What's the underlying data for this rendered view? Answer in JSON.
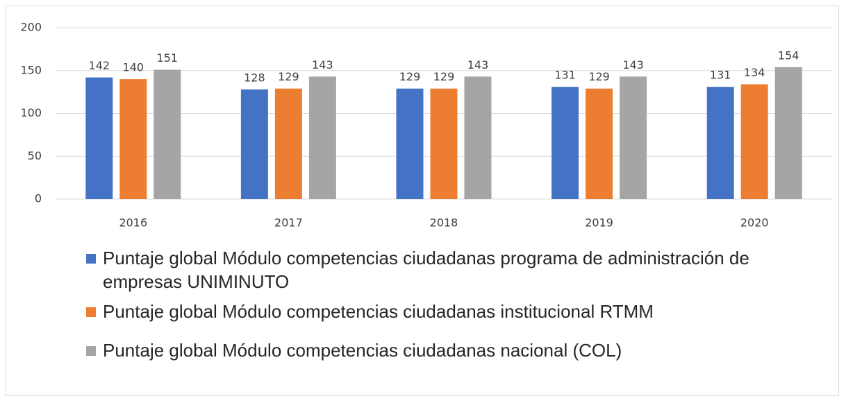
{
  "chart_data": {
    "type": "bar",
    "categories": [
      "2016",
      "2017",
      "2018",
      "2019",
      "2020"
    ],
    "series": [
      {
        "name": "Puntaje global Módulo competencias ciudadanas programa de administración de empresas UNIMINUTO",
        "color": "#4472c4",
        "values": [
          142,
          128,
          129,
          131,
          131
        ]
      },
      {
        "name": "Puntaje global Módulo competencias ciudadanas institucional RTMM",
        "color": "#ed7d31",
        "values": [
          140,
          129,
          129,
          129,
          134
        ]
      },
      {
        "name": "Puntaje global Módulo competencias ciudadanas nacional (COL)",
        "color": "#a5a5a5",
        "values": [
          151,
          143,
          143,
          143,
          154
        ]
      }
    ],
    "ylim": [
      0,
      200
    ],
    "yticks": [
      0,
      50,
      100,
      150,
      200
    ],
    "grid": true,
    "legend": "bottom",
    "data_labels": true
  }
}
